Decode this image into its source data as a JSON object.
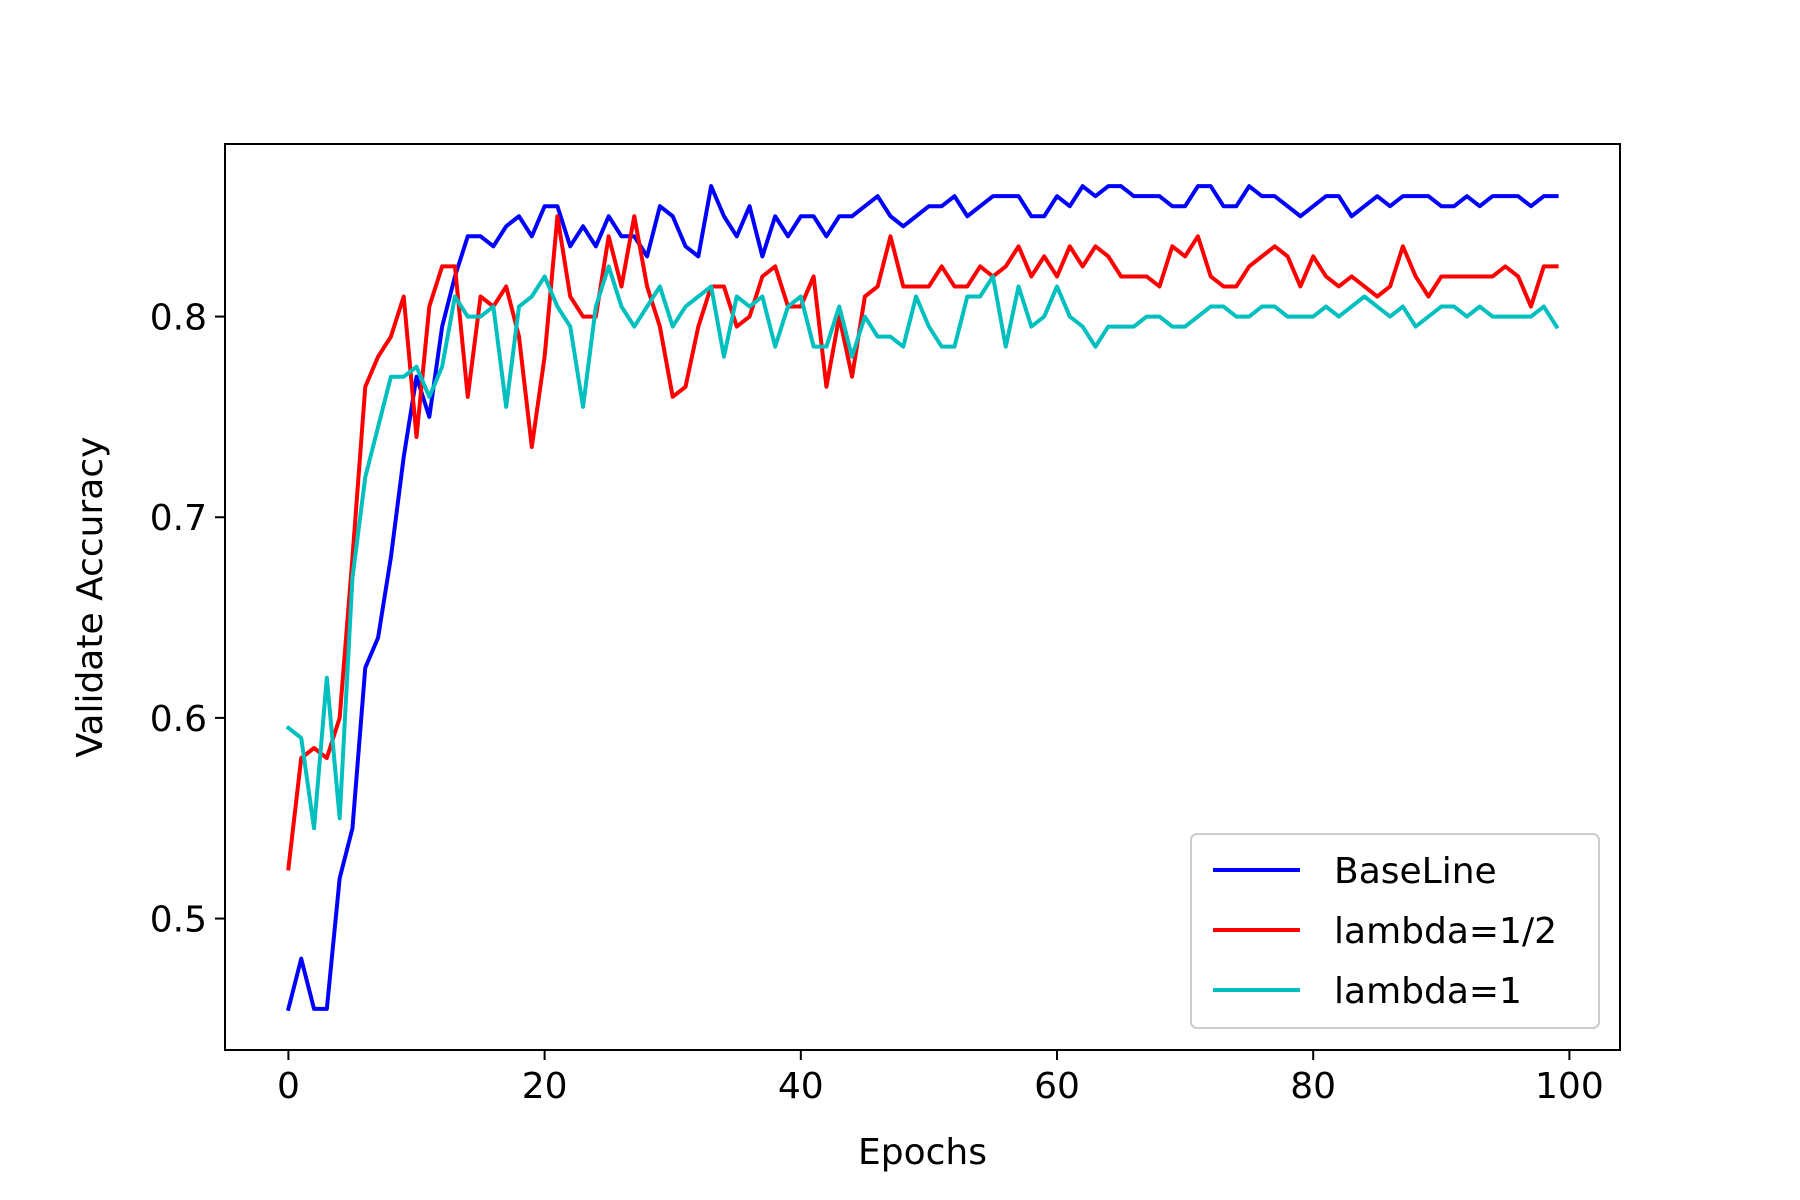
{
  "chart_data": {
    "type": "line",
    "xlabel": "Epochs",
    "ylabel": "Validate Accuracy",
    "xlim": [
      -4.95,
      103.95
    ],
    "ylim": [
      0.4345,
      0.886
    ],
    "xticks": [
      0,
      20,
      40,
      60,
      80,
      100
    ],
    "yticks": [
      0.5,
      0.6,
      0.7,
      0.8
    ],
    "xtick_labels": [
      "0",
      "20",
      "40",
      "60",
      "80",
      "100"
    ],
    "ytick_labels": [
      "0.5",
      "0.6",
      "0.7",
      "0.8"
    ],
    "grid": false,
    "legend_position": "lower-right",
    "x": [
      0,
      1,
      2,
      3,
      4,
      5,
      6,
      7,
      8,
      9,
      10,
      11,
      12,
      13,
      14,
      15,
      16,
      17,
      18,
      19,
      20,
      21,
      22,
      23,
      24,
      25,
      26,
      27,
      28,
      29,
      30,
      31,
      32,
      33,
      34,
      35,
      36,
      37,
      38,
      39,
      40,
      41,
      42,
      43,
      44,
      45,
      46,
      47,
      48,
      49,
      50,
      51,
      52,
      53,
      54,
      55,
      56,
      57,
      58,
      59,
      60,
      61,
      62,
      63,
      64,
      65,
      66,
      67,
      68,
      69,
      70,
      71,
      72,
      73,
      74,
      75,
      76,
      77,
      78,
      79,
      80,
      81,
      82,
      83,
      84,
      85,
      86,
      87,
      88,
      89,
      90,
      91,
      92,
      93,
      94,
      95,
      96,
      97,
      98,
      99
    ],
    "series": [
      {
        "name": "BaseLine",
        "color": "#0000ff",
        "values": [
          0.455,
          0.48,
          0.455,
          0.455,
          0.52,
          0.545,
          0.625,
          0.64,
          0.68,
          0.73,
          0.77,
          0.75,
          0.795,
          0.82,
          0.84,
          0.84,
          0.835,
          0.845,
          0.85,
          0.84,
          0.855,
          0.855,
          0.835,
          0.845,
          0.835,
          0.85,
          0.84,
          0.84,
          0.83,
          0.855,
          0.85,
          0.835,
          0.83,
          0.865,
          0.85,
          0.84,
          0.855,
          0.83,
          0.85,
          0.84,
          0.85,
          0.85,
          0.84,
          0.85,
          0.85,
          0.855,
          0.86,
          0.85,
          0.845,
          0.85,
          0.855,
          0.855,
          0.86,
          0.85,
          0.855,
          0.86,
          0.86,
          0.86,
          0.85,
          0.85,
          0.86,
          0.855,
          0.865,
          0.86,
          0.865,
          0.865,
          0.86,
          0.86,
          0.86,
          0.855,
          0.855,
          0.865,
          0.865,
          0.855,
          0.855,
          0.865,
          0.86,
          0.86,
          0.855,
          0.85,
          0.855,
          0.86,
          0.86,
          0.85,
          0.855,
          0.86,
          0.855,
          0.86,
          0.86,
          0.86,
          0.855,
          0.855,
          0.86,
          0.855,
          0.86,
          0.86,
          0.86,
          0.855,
          0.86,
          0.86
        ]
      },
      {
        "name": "lambda=1/2",
        "color": "#ff0000",
        "values": [
          0.525,
          0.58,
          0.585,
          0.58,
          0.6,
          0.68,
          0.765,
          0.78,
          0.79,
          0.81,
          0.74,
          0.805,
          0.825,
          0.825,
          0.76,
          0.81,
          0.805,
          0.815,
          0.79,
          0.735,
          0.78,
          0.85,
          0.81,
          0.8,
          0.8,
          0.84,
          0.815,
          0.85,
          0.815,
          0.795,
          0.76,
          0.765,
          0.795,
          0.815,
          0.815,
          0.795,
          0.8,
          0.82,
          0.825,
          0.805,
          0.805,
          0.82,
          0.765,
          0.8,
          0.77,
          0.81,
          0.815,
          0.84,
          0.815,
          0.815,
          0.815,
          0.825,
          0.815,
          0.815,
          0.825,
          0.82,
          0.825,
          0.835,
          0.82,
          0.83,
          0.82,
          0.835,
          0.825,
          0.835,
          0.83,
          0.82,
          0.82,
          0.82,
          0.815,
          0.835,
          0.83,
          0.84,
          0.82,
          0.815,
          0.815,
          0.825,
          0.83,
          0.835,
          0.83,
          0.815,
          0.83,
          0.82,
          0.815,
          0.82,
          0.815,
          0.81,
          0.815,
          0.835,
          0.82,
          0.81,
          0.82,
          0.82,
          0.82,
          0.82,
          0.82,
          0.825,
          0.82,
          0.805,
          0.825,
          0.825
        ]
      },
      {
        "name": "lambda=1",
        "color": "#00bfbf",
        "values": [
          0.595,
          0.59,
          0.545,
          0.62,
          0.55,
          0.67,
          0.72,
          0.745,
          0.77,
          0.77,
          0.775,
          0.76,
          0.775,
          0.81,
          0.8,
          0.8,
          0.805,
          0.755,
          0.805,
          0.81,
          0.82,
          0.805,
          0.795,
          0.755,
          0.805,
          0.825,
          0.805,
          0.795,
          0.805,
          0.815,
          0.795,
          0.805,
          0.81,
          0.815,
          0.78,
          0.81,
          0.805,
          0.81,
          0.785,
          0.805,
          0.81,
          0.785,
          0.785,
          0.805,
          0.78,
          0.8,
          0.79,
          0.79,
          0.785,
          0.81,
          0.795,
          0.785,
          0.785,
          0.81,
          0.81,
          0.82,
          0.785,
          0.815,
          0.795,
          0.8,
          0.815,
          0.8,
          0.795,
          0.785,
          0.795,
          0.795,
          0.795,
          0.8,
          0.8,
          0.795,
          0.795,
          0.8,
          0.805,
          0.805,
          0.8,
          0.8,
          0.805,
          0.805,
          0.8,
          0.8,
          0.8,
          0.805,
          0.8,
          0.805,
          0.81,
          0.805,
          0.8,
          0.805,
          0.795,
          0.8,
          0.805,
          0.805,
          0.8,
          0.805,
          0.8,
          0.8,
          0.8,
          0.8,
          0.805,
          0.795
        ]
      }
    ]
  }
}
